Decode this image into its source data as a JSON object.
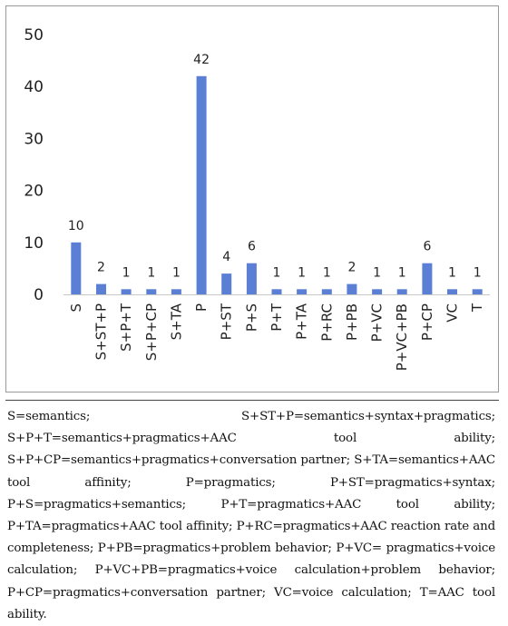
{
  "chart_data": {
    "type": "bar",
    "categories": [
      "S",
      "S+ST+P",
      "S+P+T",
      "S+P+CP",
      "S+TA",
      "P",
      "P+ST",
      "P+S",
      "P+T",
      "P+TA",
      "P+RC",
      "P+PB",
      "P+VC",
      "P+VC+PB",
      "P+CP",
      "VC",
      "T"
    ],
    "values": [
      10,
      2,
      1,
      1,
      1,
      42,
      4,
      6,
      1,
      1,
      1,
      2,
      1,
      1,
      6,
      1,
      1
    ],
    "ylim": [
      0,
      50
    ],
    "yticks": [
      0,
      10,
      20,
      30,
      40,
      50
    ],
    "bar_color": "#5b7fd4",
    "grid": false,
    "legend": "none"
  },
  "legend_text": "S=semantics; S+ST+P=semantics+syntax+pragmatics; S+P+T=semantics+pragmatics+AAC tool ability; S+P+CP=semantics+pragmatics+conversation partner; S+TA=semantics+AAC tool affinity; P=pragmatics; P+ST=pragmatics+syntax; P+S=pragmatics+semantics; P+T=pragmatics+AAC tool ability; P+TA=pragmatics+AAC tool affinity; P+RC=pragmatics+AAC reaction rate and completeness; P+PB=pragmatics+problem behavior; P+VC= pragmatics+voice calculation; P+VC+PB=pragmatics+voice calculation+problem behavior; P+CP=pragmatics+conversation partner; VC=voice calculation; T=AAC tool ability."
}
